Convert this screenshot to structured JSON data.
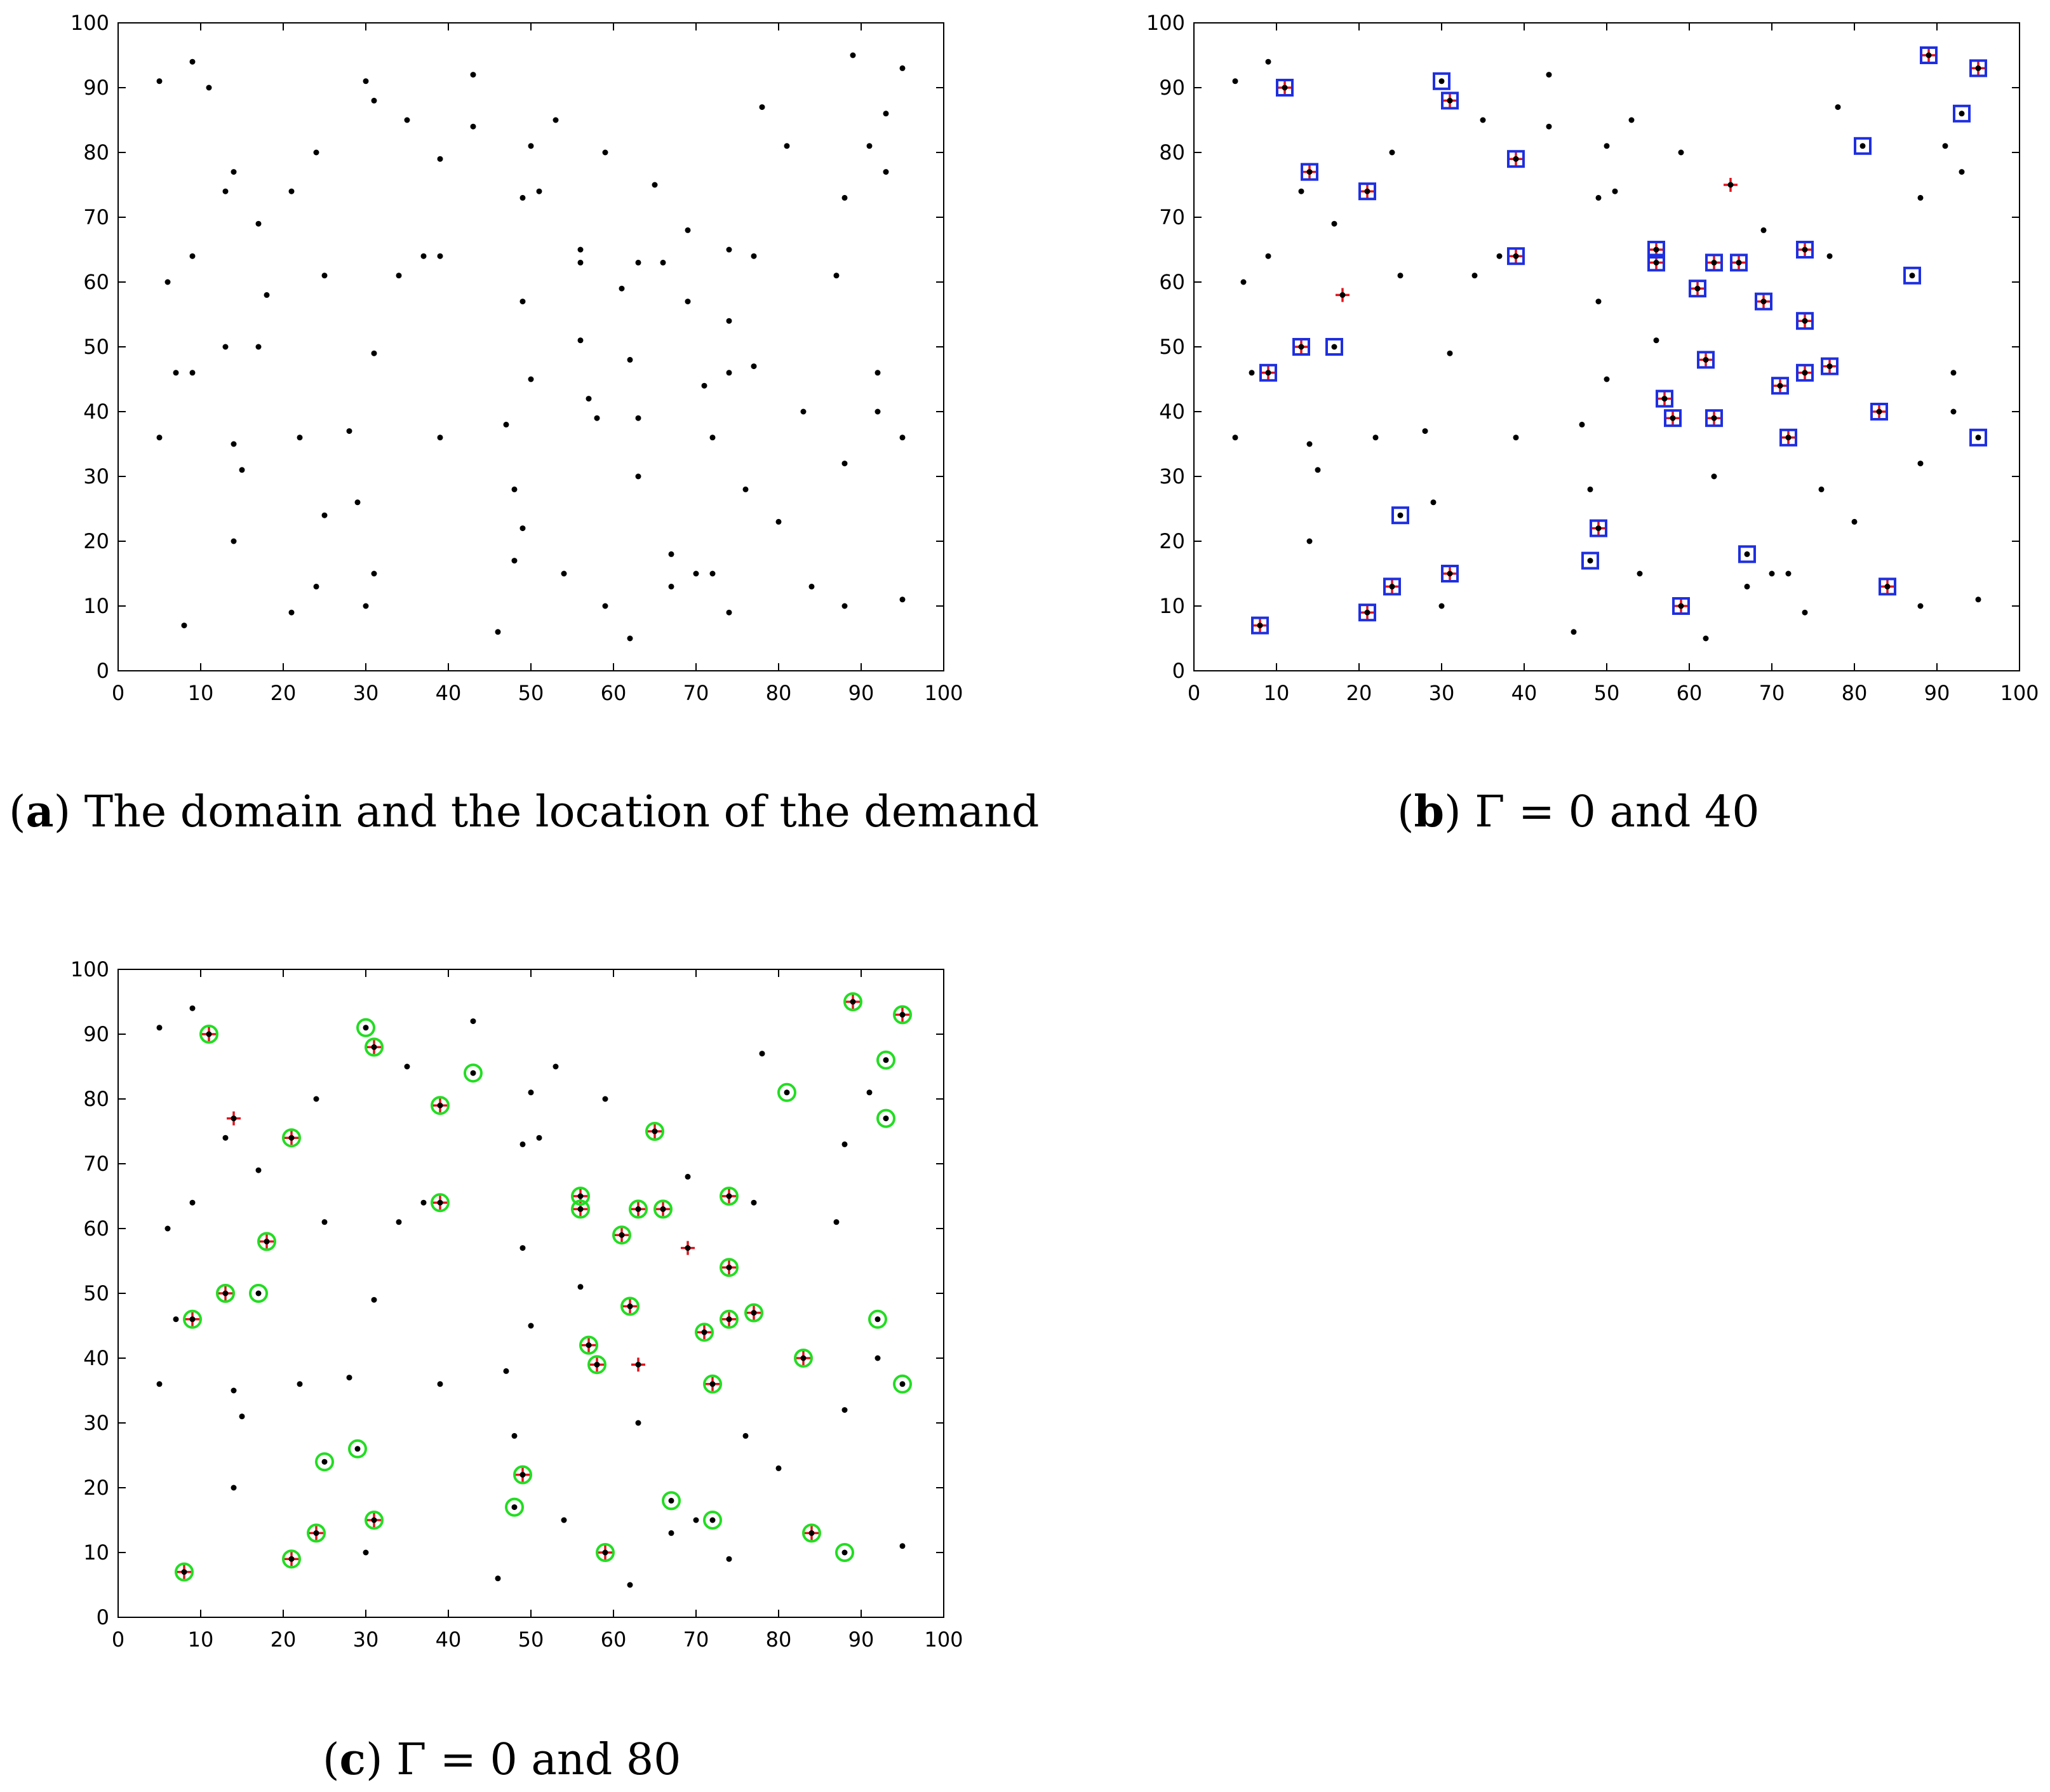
{
  "chart_data": [
    {
      "panel": "a",
      "type": "scatter",
      "caption_label": "a",
      "caption_text": "The domain and the location of the demand",
      "xlim": [
        0,
        100
      ],
      "ylim": [
        0,
        100
      ],
      "xticks": [
        0,
        10,
        20,
        30,
        40,
        50,
        60,
        70,
        80,
        90,
        100
      ],
      "yticks": [
        0,
        10,
        20,
        30,
        40,
        50,
        60,
        70,
        80,
        90,
        100
      ],
      "overlays": []
    },
    {
      "panel": "b",
      "type": "scatter",
      "caption_label": "b",
      "caption_text": "Γ = 0  and  40",
      "xlim": [
        0,
        100
      ],
      "ylim": [
        0,
        100
      ],
      "xticks": [
        0,
        10,
        20,
        30,
        40,
        50,
        60,
        70,
        80,
        90,
        100
      ],
      "yticks": [
        0,
        10,
        20,
        30,
        40,
        50,
        60,
        70,
        80,
        90,
        100
      ],
      "overlays": [
        {
          "marker": "plus",
          "color": "#e0141e",
          "points": [
            [
              8,
              7
            ],
            [
              9,
              46
            ],
            [
              11,
              90
            ],
            [
              13,
              50
            ],
            [
              14,
              77
            ],
            [
              18,
              58
            ],
            [
              21,
              74
            ],
            [
              21,
              9
            ],
            [
              24,
              13
            ],
            [
              31,
              88
            ],
            [
              31,
              15
            ],
            [
              39,
              79
            ],
            [
              39,
              64
            ],
            [
              49,
              22
            ],
            [
              56,
              65
            ],
            [
              56,
              63
            ],
            [
              57,
              42
            ],
            [
              58,
              39
            ],
            [
              59,
              10
            ],
            [
              61,
              59
            ],
            [
              62,
              48
            ],
            [
              63,
              63
            ],
            [
              63,
              39
            ],
            [
              65,
              75
            ],
            [
              66,
              63
            ],
            [
              69,
              57
            ],
            [
              71,
              44
            ],
            [
              72,
              36
            ],
            [
              74,
              65
            ],
            [
              74,
              54
            ],
            [
              74,
              46
            ],
            [
              77,
              47
            ],
            [
              83,
              40
            ],
            [
              84,
              13
            ],
            [
              89,
              95
            ],
            [
              95,
              93
            ]
          ]
        },
        {
          "marker": "square",
          "color": "#1e2fe0",
          "points": [
            [
              8,
              7
            ],
            [
              9,
              46
            ],
            [
              11,
              90
            ],
            [
              13,
              50
            ],
            [
              14,
              77
            ],
            [
              17,
              50
            ],
            [
              21,
              74
            ],
            [
              21,
              9
            ],
            [
              24,
              13
            ],
            [
              25,
              24
            ],
            [
              30,
              91
            ],
            [
              31,
              88
            ],
            [
              31,
              15
            ],
            [
              39,
              79
            ],
            [
              39,
              64
            ],
            [
              48,
              17
            ],
            [
              49,
              22
            ],
            [
              56,
              65
            ],
            [
              56,
              63
            ],
            [
              57,
              42
            ],
            [
              58,
              39
            ],
            [
              59,
              10
            ],
            [
              61,
              59
            ],
            [
              62,
              48
            ],
            [
              63,
              63
            ],
            [
              63,
              39
            ],
            [
              66,
              63
            ],
            [
              67,
              18
            ],
            [
              69,
              57
            ],
            [
              71,
              44
            ],
            [
              72,
              36
            ],
            [
              74,
              65
            ],
            [
              74,
              54
            ],
            [
              74,
              46
            ],
            [
              77,
              47
            ],
            [
              81,
              81
            ],
            [
              83,
              40
            ],
            [
              84,
              13
            ],
            [
              87,
              61
            ],
            [
              89,
              95
            ],
            [
              93,
              86
            ],
            [
              95,
              93
            ],
            [
              95,
              36
            ]
          ]
        }
      ]
    },
    {
      "panel": "c",
      "type": "scatter",
      "caption_label": "c",
      "caption_text": "Γ = 0  and  80",
      "xlim": [
        0,
        100
      ],
      "ylim": [
        0,
        100
      ],
      "xticks": [
        0,
        10,
        20,
        30,
        40,
        50,
        60,
        70,
        80,
        90,
        100
      ],
      "yticks": [
        0,
        10,
        20,
        30,
        40,
        50,
        60,
        70,
        80,
        90,
        100
      ],
      "overlays": [
        {
          "marker": "plus",
          "color": "#e0141e",
          "points": [
            [
              8,
              7
            ],
            [
              9,
              46
            ],
            [
              11,
              90
            ],
            [
              13,
              50
            ],
            [
              14,
              77
            ],
            [
              18,
              58
            ],
            [
              21,
              74
            ],
            [
              21,
              9
            ],
            [
              24,
              13
            ],
            [
              31,
              88
            ],
            [
              31,
              15
            ],
            [
              39,
              79
            ],
            [
              39,
              64
            ],
            [
              49,
              22
            ],
            [
              56,
              65
            ],
            [
              56,
              63
            ],
            [
              57,
              42
            ],
            [
              58,
              39
            ],
            [
              59,
              10
            ],
            [
              61,
              59
            ],
            [
              62,
              48
            ],
            [
              63,
              63
            ],
            [
              63,
              39
            ],
            [
              65,
              75
            ],
            [
              66,
              63
            ],
            [
              69,
              57
            ],
            [
              71,
              44
            ],
            [
              72,
              36
            ],
            [
              74,
              65
            ],
            [
              74,
              54
            ],
            [
              74,
              46
            ],
            [
              77,
              47
            ],
            [
              83,
              40
            ],
            [
              84,
              13
            ],
            [
              89,
              95
            ],
            [
              95,
              93
            ]
          ]
        },
        {
          "marker": "circle",
          "color": "#22dd22",
          "points": [
            [
              8,
              7
            ],
            [
              9,
              46
            ],
            [
              11,
              90
            ],
            [
              13,
              50
            ],
            [
              17,
              50
            ],
            [
              18,
              58
            ],
            [
              21,
              74
            ],
            [
              21,
              9
            ],
            [
              24,
              13
            ],
            [
              25,
              24
            ],
            [
              29,
              26
            ],
            [
              30,
              91
            ],
            [
              31,
              88
            ],
            [
              31,
              15
            ],
            [
              39,
              79
            ],
            [
              39,
              64
            ],
            [
              43,
              84
            ],
            [
              48,
              17
            ],
            [
              49,
              22
            ],
            [
              56,
              65
            ],
            [
              56,
              63
            ],
            [
              57,
              42
            ],
            [
              58,
              39
            ],
            [
              59,
              10
            ],
            [
              61,
              59
            ],
            [
              62,
              48
            ],
            [
              63,
              63
            ],
            [
              65,
              75
            ],
            [
              66,
              63
            ],
            [
              67,
              18
            ],
            [
              71,
              44
            ],
            [
              72,
              36
            ],
            [
              72,
              15
            ],
            [
              74,
              65
            ],
            [
              74,
              54
            ],
            [
              74,
              46
            ],
            [
              77,
              47
            ],
            [
              81,
              81
            ],
            [
              83,
              40
            ],
            [
              84,
              13
            ],
            [
              88,
              10
            ],
            [
              89,
              95
            ],
            [
              92,
              46
            ],
            [
              93,
              86
            ],
            [
              93,
              77
            ],
            [
              95,
              93
            ],
            [
              95,
              36
            ]
          ]
        }
      ]
    }
  ],
  "demand_points": [
    [
      5,
      91
    ],
    [
      5,
      36
    ],
    [
      6,
      60
    ],
    [
      7,
      46
    ],
    [
      8,
      7
    ],
    [
      9,
      94
    ],
    [
      9,
      64
    ],
    [
      9,
      46
    ],
    [
      11,
      90
    ],
    [
      13,
      74
    ],
    [
      13,
      50
    ],
    [
      14,
      77
    ],
    [
      14,
      35
    ],
    [
      14,
      20
    ],
    [
      15,
      31
    ],
    [
      17,
      69
    ],
    [
      17,
      50
    ],
    [
      18,
      58
    ],
    [
      21,
      74
    ],
    [
      21,
      9
    ],
    [
      22,
      36
    ],
    [
      24,
      80
    ],
    [
      24,
      13
    ],
    [
      25,
      61
    ],
    [
      25,
      24
    ],
    [
      28,
      37
    ],
    [
      29,
      26
    ],
    [
      30,
      91
    ],
    [
      30,
      10
    ],
    [
      31,
      88
    ],
    [
      31,
      49
    ],
    [
      31,
      15
    ],
    [
      34,
      61
    ],
    [
      35,
      85
    ],
    [
      37,
      64
    ],
    [
      39,
      79
    ],
    [
      39,
      64
    ],
    [
      39,
      36
    ],
    [
      43,
      92
    ],
    [
      43,
      84
    ],
    [
      46,
      6
    ],
    [
      47,
      38
    ],
    [
      48,
      28
    ],
    [
      48,
      17
    ],
    [
      49,
      73
    ],
    [
      49,
      57
    ],
    [
      49,
      22
    ],
    [
      50,
      81
    ],
    [
      50,
      45
    ],
    [
      51,
      74
    ],
    [
      53,
      85
    ],
    [
      54,
      15
    ],
    [
      56,
      65
    ],
    [
      56,
      63
    ],
    [
      56,
      51
    ],
    [
      57,
      42
    ],
    [
      58,
      39
    ],
    [
      59,
      80
    ],
    [
      59,
      10
    ],
    [
      61,
      59
    ],
    [
      62,
      48
    ],
    [
      62,
      5
    ],
    [
      63,
      63
    ],
    [
      63,
      39
    ],
    [
      63,
      30
    ],
    [
      65,
      75
    ],
    [
      66,
      63
    ],
    [
      67,
      18
    ],
    [
      67,
      13
    ],
    [
      69,
      68
    ],
    [
      69,
      57
    ],
    [
      70,
      15
    ],
    [
      71,
      44
    ],
    [
      72,
      36
    ],
    [
      72,
      15
    ],
    [
      74,
      65
    ],
    [
      74,
      54
    ],
    [
      74,
      46
    ],
    [
      74,
      9
    ],
    [
      76,
      28
    ],
    [
      77,
      64
    ],
    [
      77,
      47
    ],
    [
      78,
      87
    ],
    [
      80,
      23
    ],
    [
      81,
      81
    ],
    [
      83,
      40
    ],
    [
      84,
      13
    ],
    [
      87,
      61
    ],
    [
      88,
      73
    ],
    [
      88,
      32
    ],
    [
      88,
      10
    ],
    [
      89,
      95
    ],
    [
      91,
      81
    ],
    [
      92,
      46
    ],
    [
      92,
      40
    ],
    [
      93,
      86
    ],
    [
      93,
      77
    ],
    [
      95,
      93
    ],
    [
      95,
      36
    ],
    [
      95,
      11
    ]
  ]
}
